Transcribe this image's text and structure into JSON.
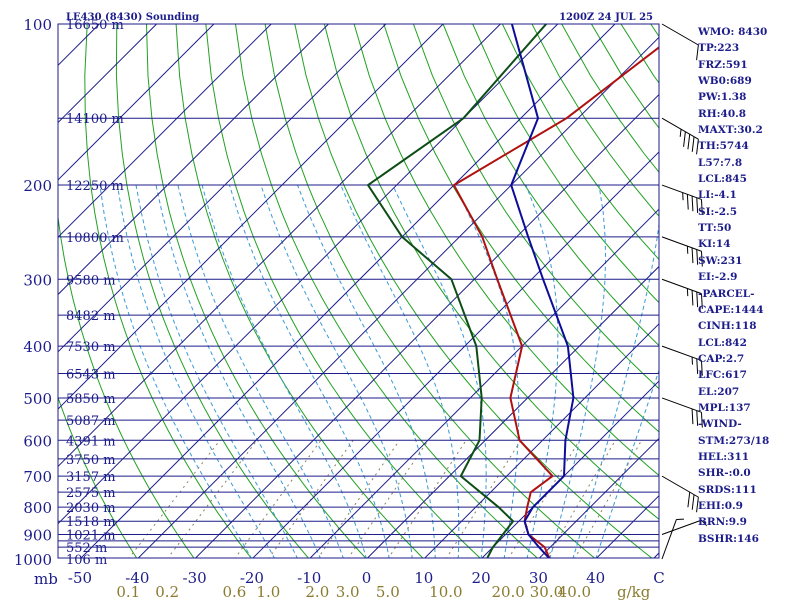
{
  "header": {
    "left": "LE430 (8430) Sounding",
    "right": "1200Z 24 JUL 25"
  },
  "indices": [
    "WMO: 8430",
    "TP:223",
    "FRZ:591",
    "WB0:689",
    "PW:1.38",
    "RH:40.8",
    "MAXT:30.2",
    "TH:5744",
    "L57:7.8",
    "LCL:845",
    "LI:-4.1",
    "SI:-2.5",
    "TT:50",
    "KI:14",
    "SW:231",
    "EI:-2.9",
    "-PARCEL-",
    "CAPE:1444",
    "CINH:118",
    "LCL:842",
    "CAP:2.7",
    "LFC:617",
    "EL:207",
    "MPL:137",
    "-WIND-",
    "STM:273/18",
    "HEL:311",
    "SHR-:0.0",
    "SRDS:111",
    "EHI:0.9",
    "BRN:9.9",
    "BSHR:146"
  ],
  "chart_data": {
    "type": "line",
    "x_axis_unit": "C",
    "mixing_ratio_unit": "g/kg",
    "pressure_unit": "mb",
    "x_ticks": [
      "-50",
      "-40",
      "-30",
      "-20",
      "-10",
      "0",
      "10",
      "20",
      "30",
      "40",
      "C"
    ],
    "mixing_ratio_ticks": [
      "0.1",
      "0.2",
      "0.6",
      "1.0",
      "2.0",
      "3.0",
      "5.0",
      "10.0",
      "20.0",
      "30.0",
      "40.0"
    ],
    "pressure_levels": [
      100,
      150,
      200,
      250,
      300,
      350,
      400,
      450,
      500,
      550,
      600,
      650,
      700,
      750,
      800,
      850,
      900,
      925,
      950,
      1000
    ],
    "pressure_labels": [
      "100",
      "200",
      "300",
      "400",
      "500",
      "600",
      "700",
      "800",
      "900",
      "1000"
    ],
    "height_labels": [
      {
        "p": 100,
        "label": "16650 m"
      },
      {
        "p": 150,
        "label": "14100 m"
      },
      {
        "p": 200,
        "label": "12250 m"
      },
      {
        "p": 250,
        "label": "10800 m"
      },
      {
        "p": 300,
        "label": "9580 m"
      },
      {
        "p": 350,
        "label": "8482 m"
      },
      {
        "p": 400,
        "label": "7530 m"
      },
      {
        "p": 450,
        "label": "6543 m"
      },
      {
        "p": 500,
        "label": "5850 m"
      },
      {
        "p": 550,
        "label": "5087 m"
      },
      {
        "p": 600,
        "label": "4391 m"
      },
      {
        "p": 650,
        "label": "3750 m"
      },
      {
        "p": 700,
        "label": "3157 m"
      },
      {
        "p": 750,
        "label": "2575 m"
      },
      {
        "p": 800,
        "label": "2030 m"
      },
      {
        "p": 850,
        "label": "1518 m"
      },
      {
        "p": 900,
        "label": "1021 m"
      },
      {
        "p": 950,
        "label": "552 m"
      },
      {
        "p": 1000,
        "label": "106 m"
      }
    ],
    "series": [
      {
        "color": "#b01010",
        "points": [
          [
            100,
            -37
          ],
          [
            150,
            -42
          ],
          [
            200,
            -50
          ],
          [
            250,
            -36
          ],
          [
            300,
            -26
          ],
          [
            400,
            -10
          ],
          [
            500,
            -3
          ],
          [
            600,
            6
          ],
          [
            700,
            18
          ],
          [
            750,
            17
          ],
          [
            800,
            19
          ],
          [
            850,
            21
          ],
          [
            900,
            24
          ],
          [
            950,
            29
          ],
          [
            1000,
            32
          ]
        ]
      },
      {
        "color": "#0d4d16",
        "points": [
          [
            100,
            -62
          ],
          [
            150,
            -60
          ],
          [
            200,
            -65
          ],
          [
            250,
            -50
          ],
          [
            300,
            -34
          ],
          [
            400,
            -18
          ],
          [
            500,
            -8
          ],
          [
            600,
            -1
          ],
          [
            700,
            2
          ],
          [
            800,
            14
          ],
          [
            850,
            19
          ],
          [
            950,
            20
          ],
          [
            1000,
            21
          ]
        ]
      },
      {
        "color": "#0d0d99",
        "points": [
          [
            100,
            -68
          ],
          [
            150,
            -47
          ],
          [
            200,
            -40
          ],
          [
            250,
            -28
          ],
          [
            300,
            -18
          ],
          [
            400,
            -2
          ],
          [
            500,
            8
          ],
          [
            600,
            14
          ],
          [
            700,
            20
          ],
          [
            800,
            20
          ],
          [
            850,
            21
          ],
          [
            900,
            24
          ],
          [
            950,
            28
          ],
          [
            1000,
            32
          ]
        ]
      }
    ],
    "wind_barbs": [
      {
        "p": 100,
        "dir": 300,
        "speed": 10
      },
      {
        "p": 150,
        "dir": 300,
        "speed": 45
      },
      {
        "p": 200,
        "dir": 290,
        "speed": 45
      },
      {
        "p": 250,
        "dir": 290,
        "speed": 35
      },
      {
        "p": 300,
        "dir": 290,
        "speed": 35
      },
      {
        "p": 400,
        "dir": 290,
        "speed": 25
      },
      {
        "p": 500,
        "dir": 290,
        "speed": 30
      },
      {
        "p": 700,
        "dir": 300,
        "speed": 30
      },
      {
        "p": 900,
        "dir": 250,
        "speed": 5
      },
      {
        "p": 1000,
        "dir": 200,
        "speed": 5
      }
    ],
    "colors": {
      "isobar": "#1c1c8a",
      "isotherm": "#1c1c8a",
      "dry_adiabat": "#22a022",
      "moist_adiabat": "#3a9ad6",
      "mixing_ratio": "#8b8060",
      "axis_label": "#8b7b30"
    }
  }
}
